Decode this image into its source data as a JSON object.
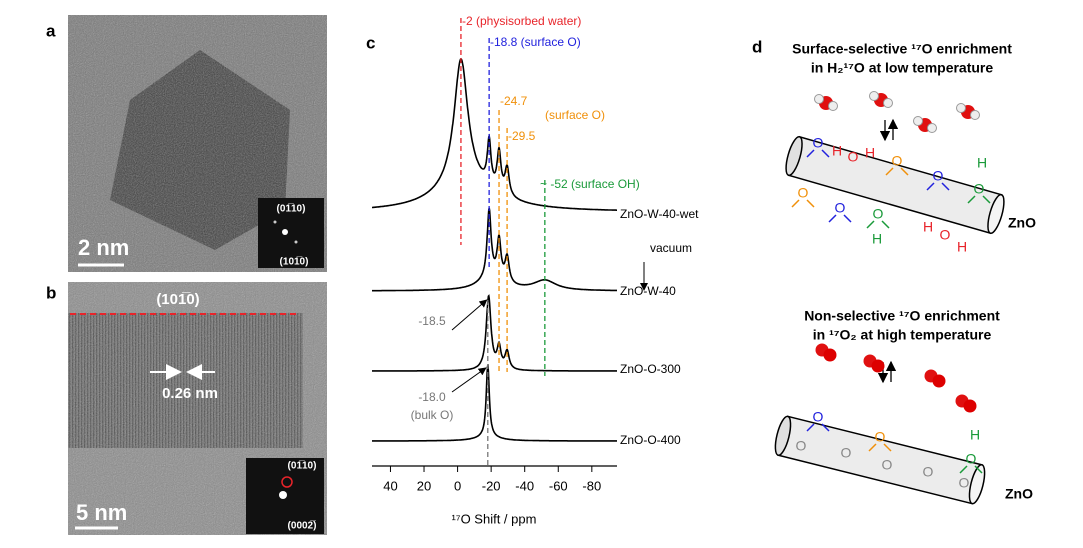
{
  "panels": {
    "a": {
      "label": "a",
      "scale_bar": "2 nm",
      "fft_labels": [
        "(01̅10)",
        "(101̅0)"
      ]
    },
    "b": {
      "label": "b",
      "plane": "(101̅0)",
      "spacing": "0.26 nm",
      "scale_bar": "5 nm",
      "fft_labels": [
        "(01̅10)",
        "(0002̅)"
      ]
    },
    "d": {
      "label": "d",
      "top": {
        "title": [
          "Surface-selective ¹⁷O enrichment",
          "in H₂¹⁷O at low temperature"
        ],
        "rod_label": "ZnO",
        "atoms": [
          "H",
          "O",
          "H",
          "O",
          "O",
          "O",
          "H",
          "O",
          "O",
          "O",
          "O",
          "H",
          "H",
          "O",
          "H"
        ]
      },
      "bottom": {
        "title": [
          "Non-selective ¹⁷O enrichment",
          "in ¹⁷O₂ at high temperature"
        ],
        "rod_label": "ZnO",
        "atoms": [
          "O",
          "O",
          "H",
          "O",
          "O",
          "O",
          "O",
          "O",
          "O"
        ]
      }
    }
  },
  "chart_data": {
    "type": "line",
    "label": "c",
    "xlabel": "¹⁷O Shift / ppm",
    "xlim": [
      51,
      -95
    ],
    "xticks": [
      40,
      20,
      0,
      -20,
      -40,
      -60,
      -80
    ],
    "series": [
      {
        "name": "ZnO-W-40-wet",
        "color": "#000000",
        "peaks": [
          {
            "x": -2,
            "height": 128,
            "width": 5
          },
          {
            "x": -5,
            "height": 25,
            "width": 22
          },
          {
            "x": -18.8,
            "height": 45,
            "width": 1.3
          },
          {
            "x": -24.7,
            "height": 40,
            "width": 1.4
          },
          {
            "x": -29.5,
            "height": 28,
            "width": 1.5
          }
        ]
      },
      {
        "name": "ZnO-W-40",
        "color": "#000000",
        "peaks": [
          {
            "x": -18.8,
            "height": 68,
            "width": 1.4
          },
          {
            "x": -20,
            "height": 12,
            "width": 9
          },
          {
            "x": -24.7,
            "height": 40,
            "width": 1.4
          },
          {
            "x": -29.5,
            "height": 26,
            "width": 1.5
          },
          {
            "x": -52,
            "height": 10,
            "width": 8
          }
        ]
      },
      {
        "name": "ZnO-O-300",
        "color": "#000000",
        "peaks": [
          {
            "x": -18.5,
            "height": 74,
            "width": 1.7
          },
          {
            "x": -24.7,
            "height": 22,
            "width": 1.4
          },
          {
            "x": -29.5,
            "height": 18,
            "width": 1.5
          }
        ]
      },
      {
        "name": "ZnO-O-400",
        "color": "#000000",
        "peaks": [
          {
            "x": -18.0,
            "height": 72,
            "width": 1.1
          },
          {
            "x": -18.0,
            "height": 4,
            "width": 8
          }
        ]
      }
    ],
    "markers": [
      {
        "x": -2,
        "label": "-2 (physisorbed water)",
        "color": "#e8242a"
      },
      {
        "x": -18.8,
        "label": "-18.8 (surface O)",
        "color": "#2222dd"
      },
      {
        "x": -24.7,
        "label": "-24.7",
        "note": "(surface O)",
        "color": "#f0900a"
      },
      {
        "x": -29.5,
        "label": "-29.5",
        "color": "#f0900a"
      },
      {
        "x": -52,
        "label": "~ -52 (surface OH)",
        "color": "#1a9a3a"
      },
      {
        "x": -18.5,
        "label": "-18.5",
        "color": "#777777"
      },
      {
        "x": -18.0,
        "label": "-18.0",
        "note": "(bulk O)",
        "color": "#777777"
      }
    ],
    "arrow_label": "vacuum"
  }
}
